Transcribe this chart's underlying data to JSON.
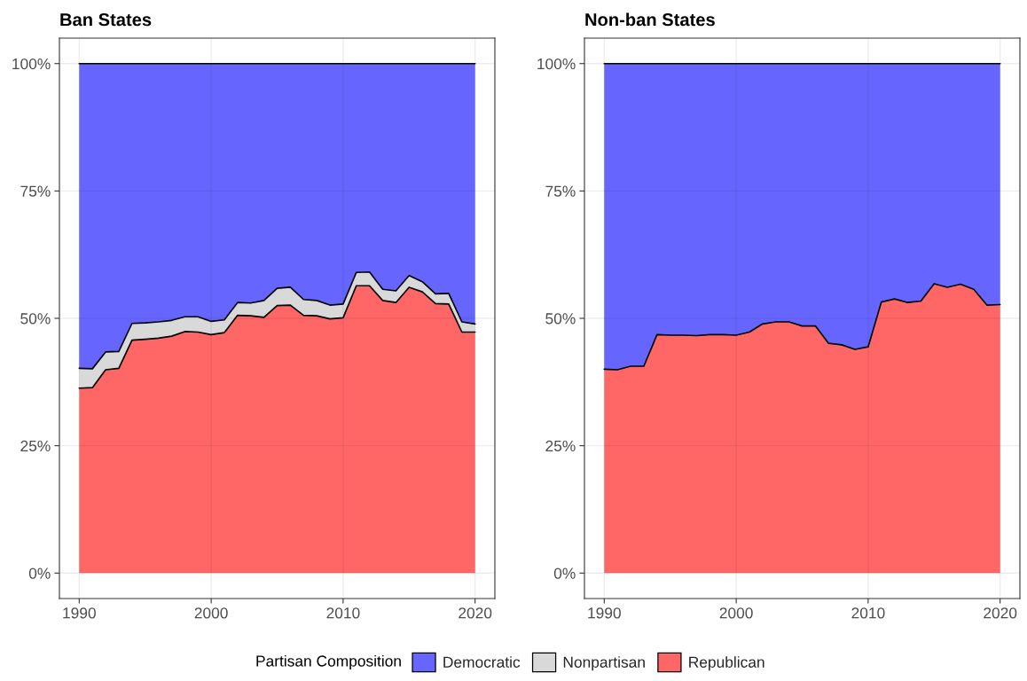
{
  "chart_data": [
    {
      "type": "area",
      "title": "Ban States",
      "stacked": true,
      "x": [
        1990,
        1991,
        1992,
        1993,
        1994,
        1995,
        1996,
        1997,
        1998,
        1999,
        2000,
        2001,
        2002,
        2003,
        2004,
        2005,
        2006,
        2007,
        2008,
        2009,
        2010,
        2011,
        2012,
        2013,
        2014,
        2015,
        2016,
        2017,
        2018,
        2019,
        2020
      ],
      "series": [
        {
          "name": "Republican",
          "color": "#ff6666",
          "values": [
            36.3,
            36.4,
            39.9,
            40.2,
            45.7,
            45.9,
            46.1,
            46.5,
            47.4,
            47.3,
            46.8,
            47.2,
            50.6,
            50.5,
            50.2,
            52.5,
            52.6,
            50.6,
            50.5,
            49.9,
            50.1,
            56.4,
            56.4,
            53.5,
            53.1,
            56.1,
            55.2,
            52.9,
            52.8,
            47.3,
            47.3
          ]
        },
        {
          "name": "Nonpartisan",
          "color": "#d9d9d9",
          "values": [
            3.9,
            3.7,
            3.5,
            3.3,
            3.3,
            3.2,
            3.2,
            3.1,
            2.9,
            3.0,
            2.6,
            2.5,
            2.5,
            2.5,
            3.3,
            3.4,
            3.5,
            3.1,
            3.0,
            2.7,
            2.7,
            2.6,
            2.7,
            2.2,
            2.3,
            2.3,
            2.0,
            1.9,
            2.1,
            2.0,
            1.6
          ]
        },
        {
          "name": "Democratic",
          "color": "#6666ff",
          "values": [
            59.8,
            59.9,
            56.6,
            56.5,
            51.0,
            50.9,
            50.7,
            50.4,
            49.7,
            49.7,
            50.6,
            50.3,
            46.9,
            47.0,
            46.5,
            44.1,
            43.9,
            46.3,
            46.5,
            47.4,
            47.2,
            41.0,
            40.9,
            44.3,
            44.6,
            41.6,
            42.8,
            45.2,
            45.1,
            50.7,
            51.1
          ]
        }
      ],
      "xlim": [
        1988.5,
        2021.5
      ],
      "ylim": [
        -5,
        105
      ],
      "xticks": [
        1990,
        2000,
        2010,
        2020
      ],
      "yticks": [
        {
          "value": 0,
          "label": "0%"
        },
        {
          "value": 25,
          "label": "25%"
        },
        {
          "value": 50,
          "label": "50%"
        },
        {
          "value": 75,
          "label": "75%"
        },
        {
          "value": 100,
          "label": "100%"
        }
      ],
      "grid": true,
      "legend": "bottom",
      "legend_title": "Partisan Composition"
    },
    {
      "type": "area",
      "title": "Non-ban States",
      "stacked": true,
      "x": [
        1990,
        1991,
        1992,
        1993,
        1994,
        1995,
        1996,
        1997,
        1998,
        1999,
        2000,
        2001,
        2002,
        2003,
        2004,
        2005,
        2006,
        2007,
        2008,
        2009,
        2010,
        2011,
        2012,
        2013,
        2014,
        2015,
        2016,
        2017,
        2018,
        2019,
        2020
      ],
      "series": [
        {
          "name": "Republican",
          "color": "#ff6666",
          "values": [
            40.0,
            39.9,
            40.6,
            40.6,
            46.8,
            46.7,
            46.7,
            46.6,
            46.8,
            46.8,
            46.7,
            47.3,
            48.9,
            49.3,
            49.3,
            48.5,
            48.5,
            45.1,
            44.8,
            43.9,
            44.4,
            53.2,
            53.8,
            53.1,
            53.4,
            56.8,
            56.1,
            56.7,
            55.7,
            52.6,
            52.7
          ]
        },
        {
          "name": "Democratic",
          "color": "#6666ff",
          "values": [
            60.0,
            60.1,
            59.4,
            59.4,
            53.2,
            53.3,
            53.3,
            53.4,
            53.2,
            53.2,
            53.3,
            52.7,
            51.1,
            50.7,
            50.7,
            51.5,
            51.5,
            54.9,
            55.2,
            56.1,
            55.6,
            46.8,
            46.2,
            46.9,
            46.6,
            43.2,
            43.9,
            43.3,
            44.3,
            47.4,
            47.3
          ]
        }
      ],
      "xlim": [
        1988.5,
        2021.5
      ],
      "ylim": [
        -5,
        105
      ],
      "xticks": [
        1990,
        2000,
        2010,
        2020
      ],
      "yticks": [
        {
          "value": 0,
          "label": "0%"
        },
        {
          "value": 25,
          "label": "25%"
        },
        {
          "value": 50,
          "label": "50%"
        },
        {
          "value": 75,
          "label": "75%"
        },
        {
          "value": 100,
          "label": "100%"
        }
      ],
      "grid": true
    }
  ]
}
